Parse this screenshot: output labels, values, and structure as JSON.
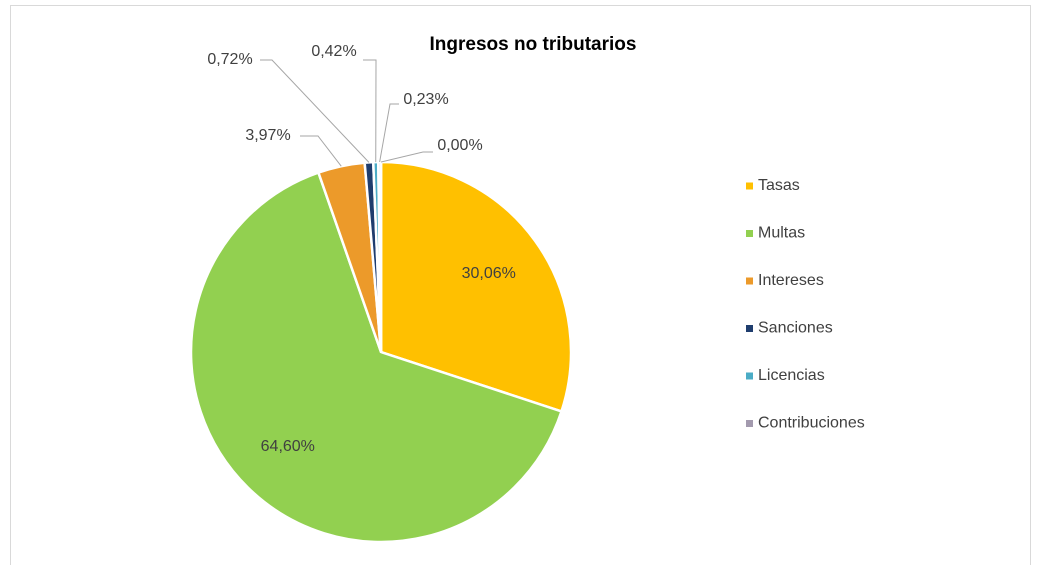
{
  "chart_data": {
    "type": "pie",
    "title": "Ingresos no tributarios",
    "categories": [
      "Tasas",
      "Multas",
      "Intereses",
      "Sanciones",
      "Licencias",
      "Contribuciones",
      null
    ],
    "values": [
      30.06,
      64.6,
      3.97,
      0.72,
      0.42,
      0.23,
      0.0
    ],
    "value_labels": [
      "30,06%",
      "64,60%",
      "3,97%",
      "0,72%",
      "0,42%",
      "0,23%",
      "0,00%"
    ],
    "colors": [
      "#ffc000",
      "#92d050",
      "#ec9a2a",
      "#1f3d6e",
      "#4bacc6",
      "#a39aae",
      "#c9b8d8"
    ],
    "legend": "right"
  }
}
